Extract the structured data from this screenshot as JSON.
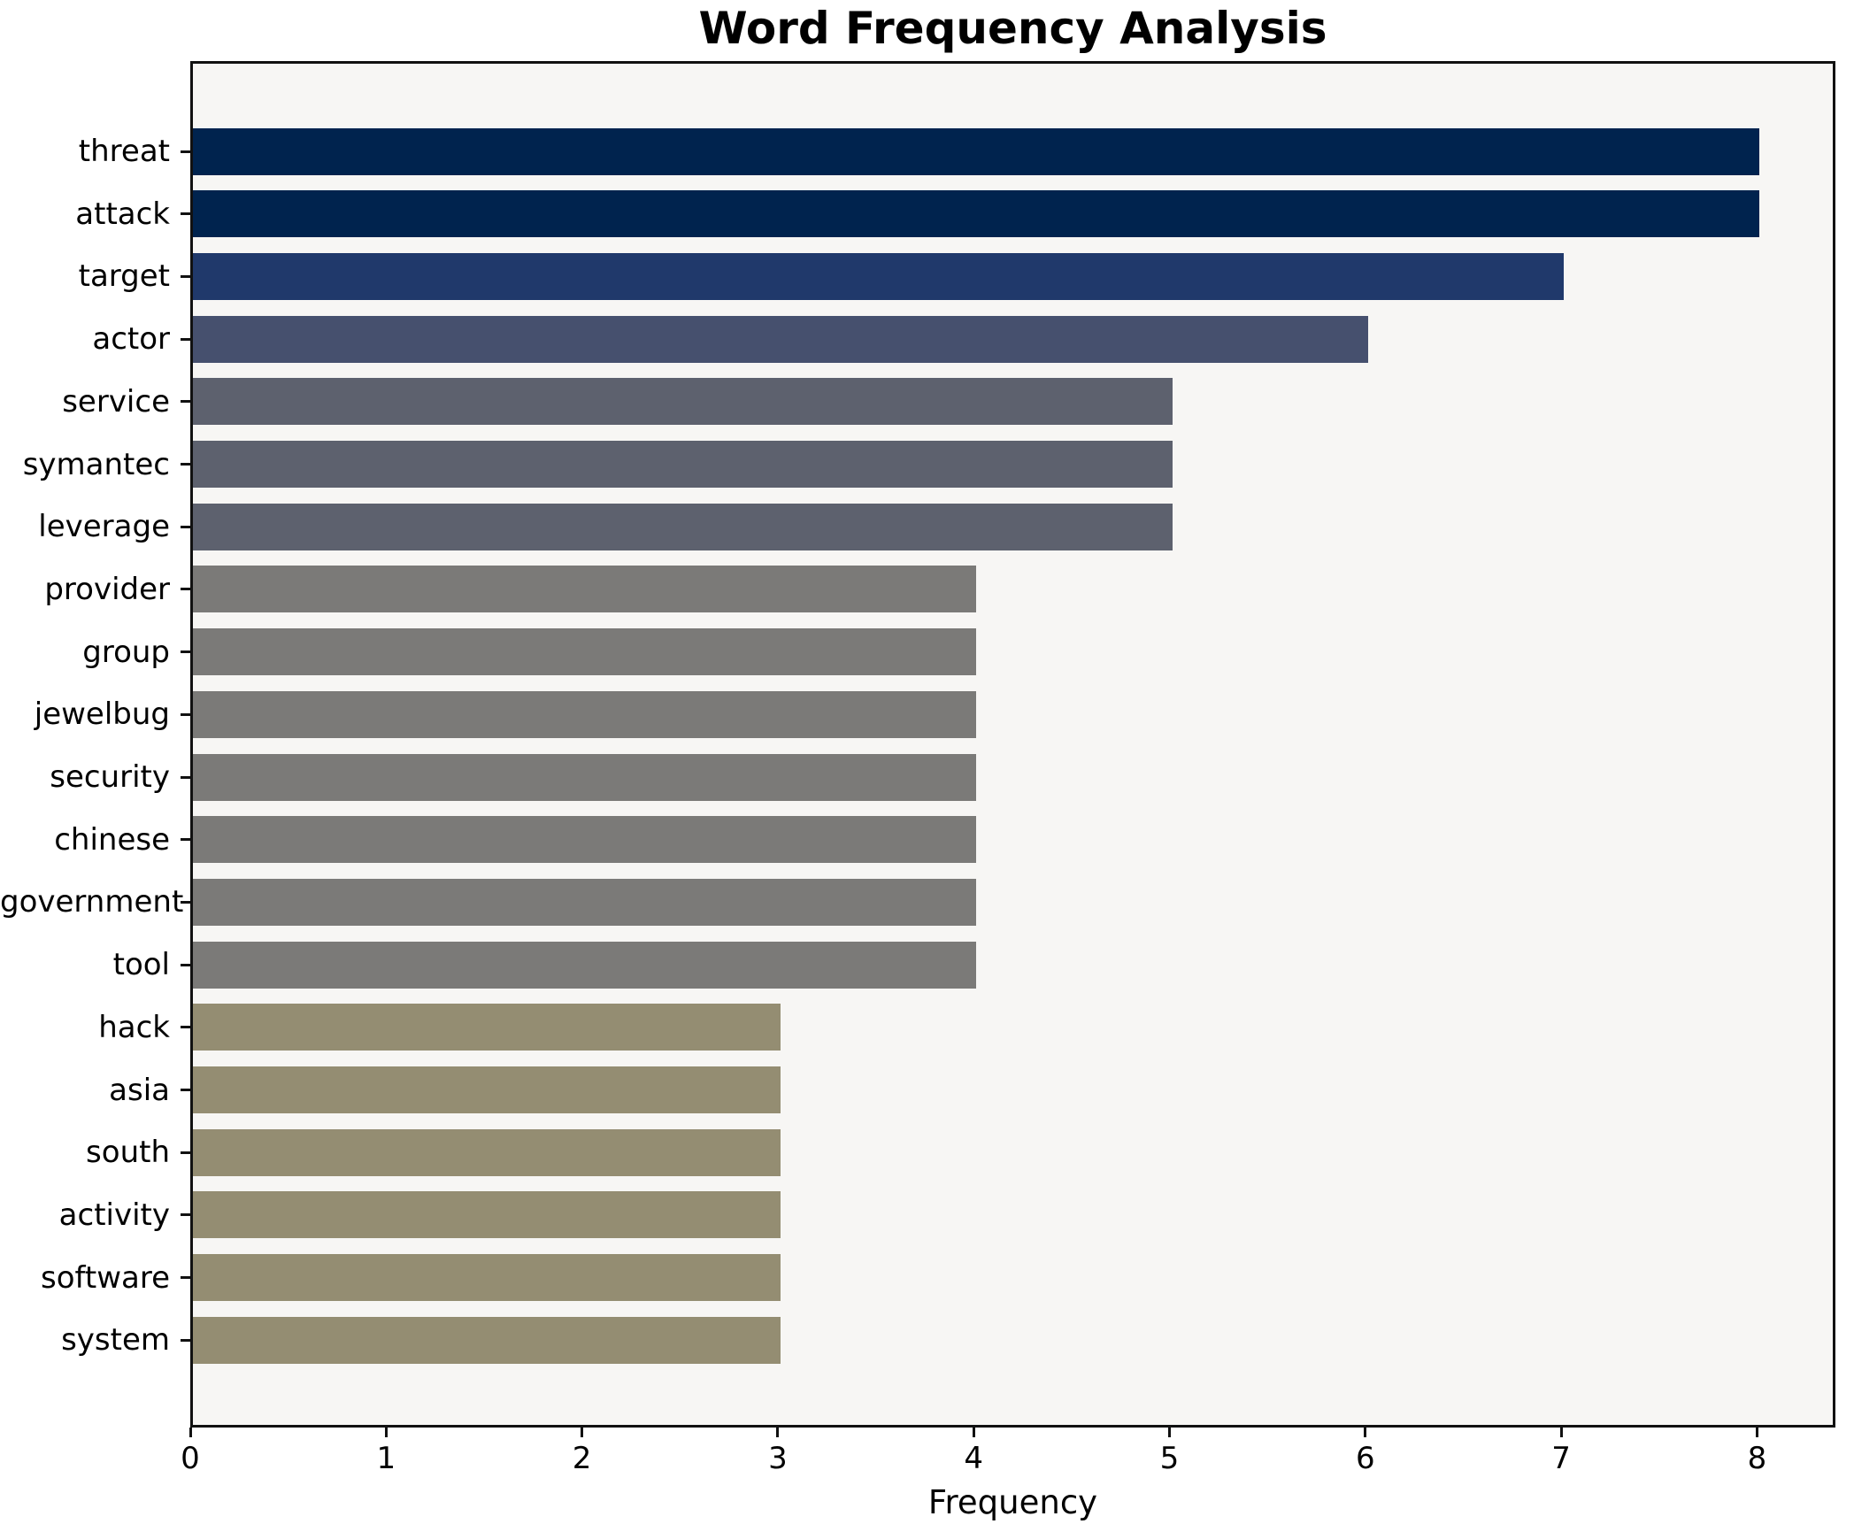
{
  "title": "Word Frequency Analysis",
  "xlabel": "Frequency",
  "colors": {
    "figure_background": "#ffffff",
    "plot_background": "#f7f6f4",
    "spine": "#111111",
    "text": "#000000"
  },
  "chart_data": {
    "type": "bar",
    "orientation": "horizontal",
    "title": "Word Frequency Analysis",
    "xlabel": "Frequency",
    "ylabel": "",
    "grid": false,
    "legend": false,
    "xlim": [
      0,
      8.4
    ],
    "xticks": [
      0,
      1,
      2,
      3,
      4,
      5,
      6,
      7,
      8
    ],
    "categories": [
      "threat",
      "attack",
      "target",
      "actor",
      "service",
      "symantec",
      "leverage",
      "provider",
      "group",
      "jewelbug",
      "security",
      "chinese",
      "government",
      "tool",
      "hack",
      "asia",
      "south",
      "activity",
      "software",
      "system"
    ],
    "values": [
      8,
      8,
      7,
      6,
      5,
      5,
      5,
      4,
      4,
      4,
      4,
      4,
      4,
      4,
      3,
      3,
      3,
      3,
      3,
      3
    ],
    "value_colors": {
      "8": "#00234e",
      "7": "#20396b",
      "6": "#46506e",
      "5": "#5d616e",
      "4": "#7b7a78",
      "3": "#948d72"
    },
    "colormap_hint": "cividis"
  }
}
